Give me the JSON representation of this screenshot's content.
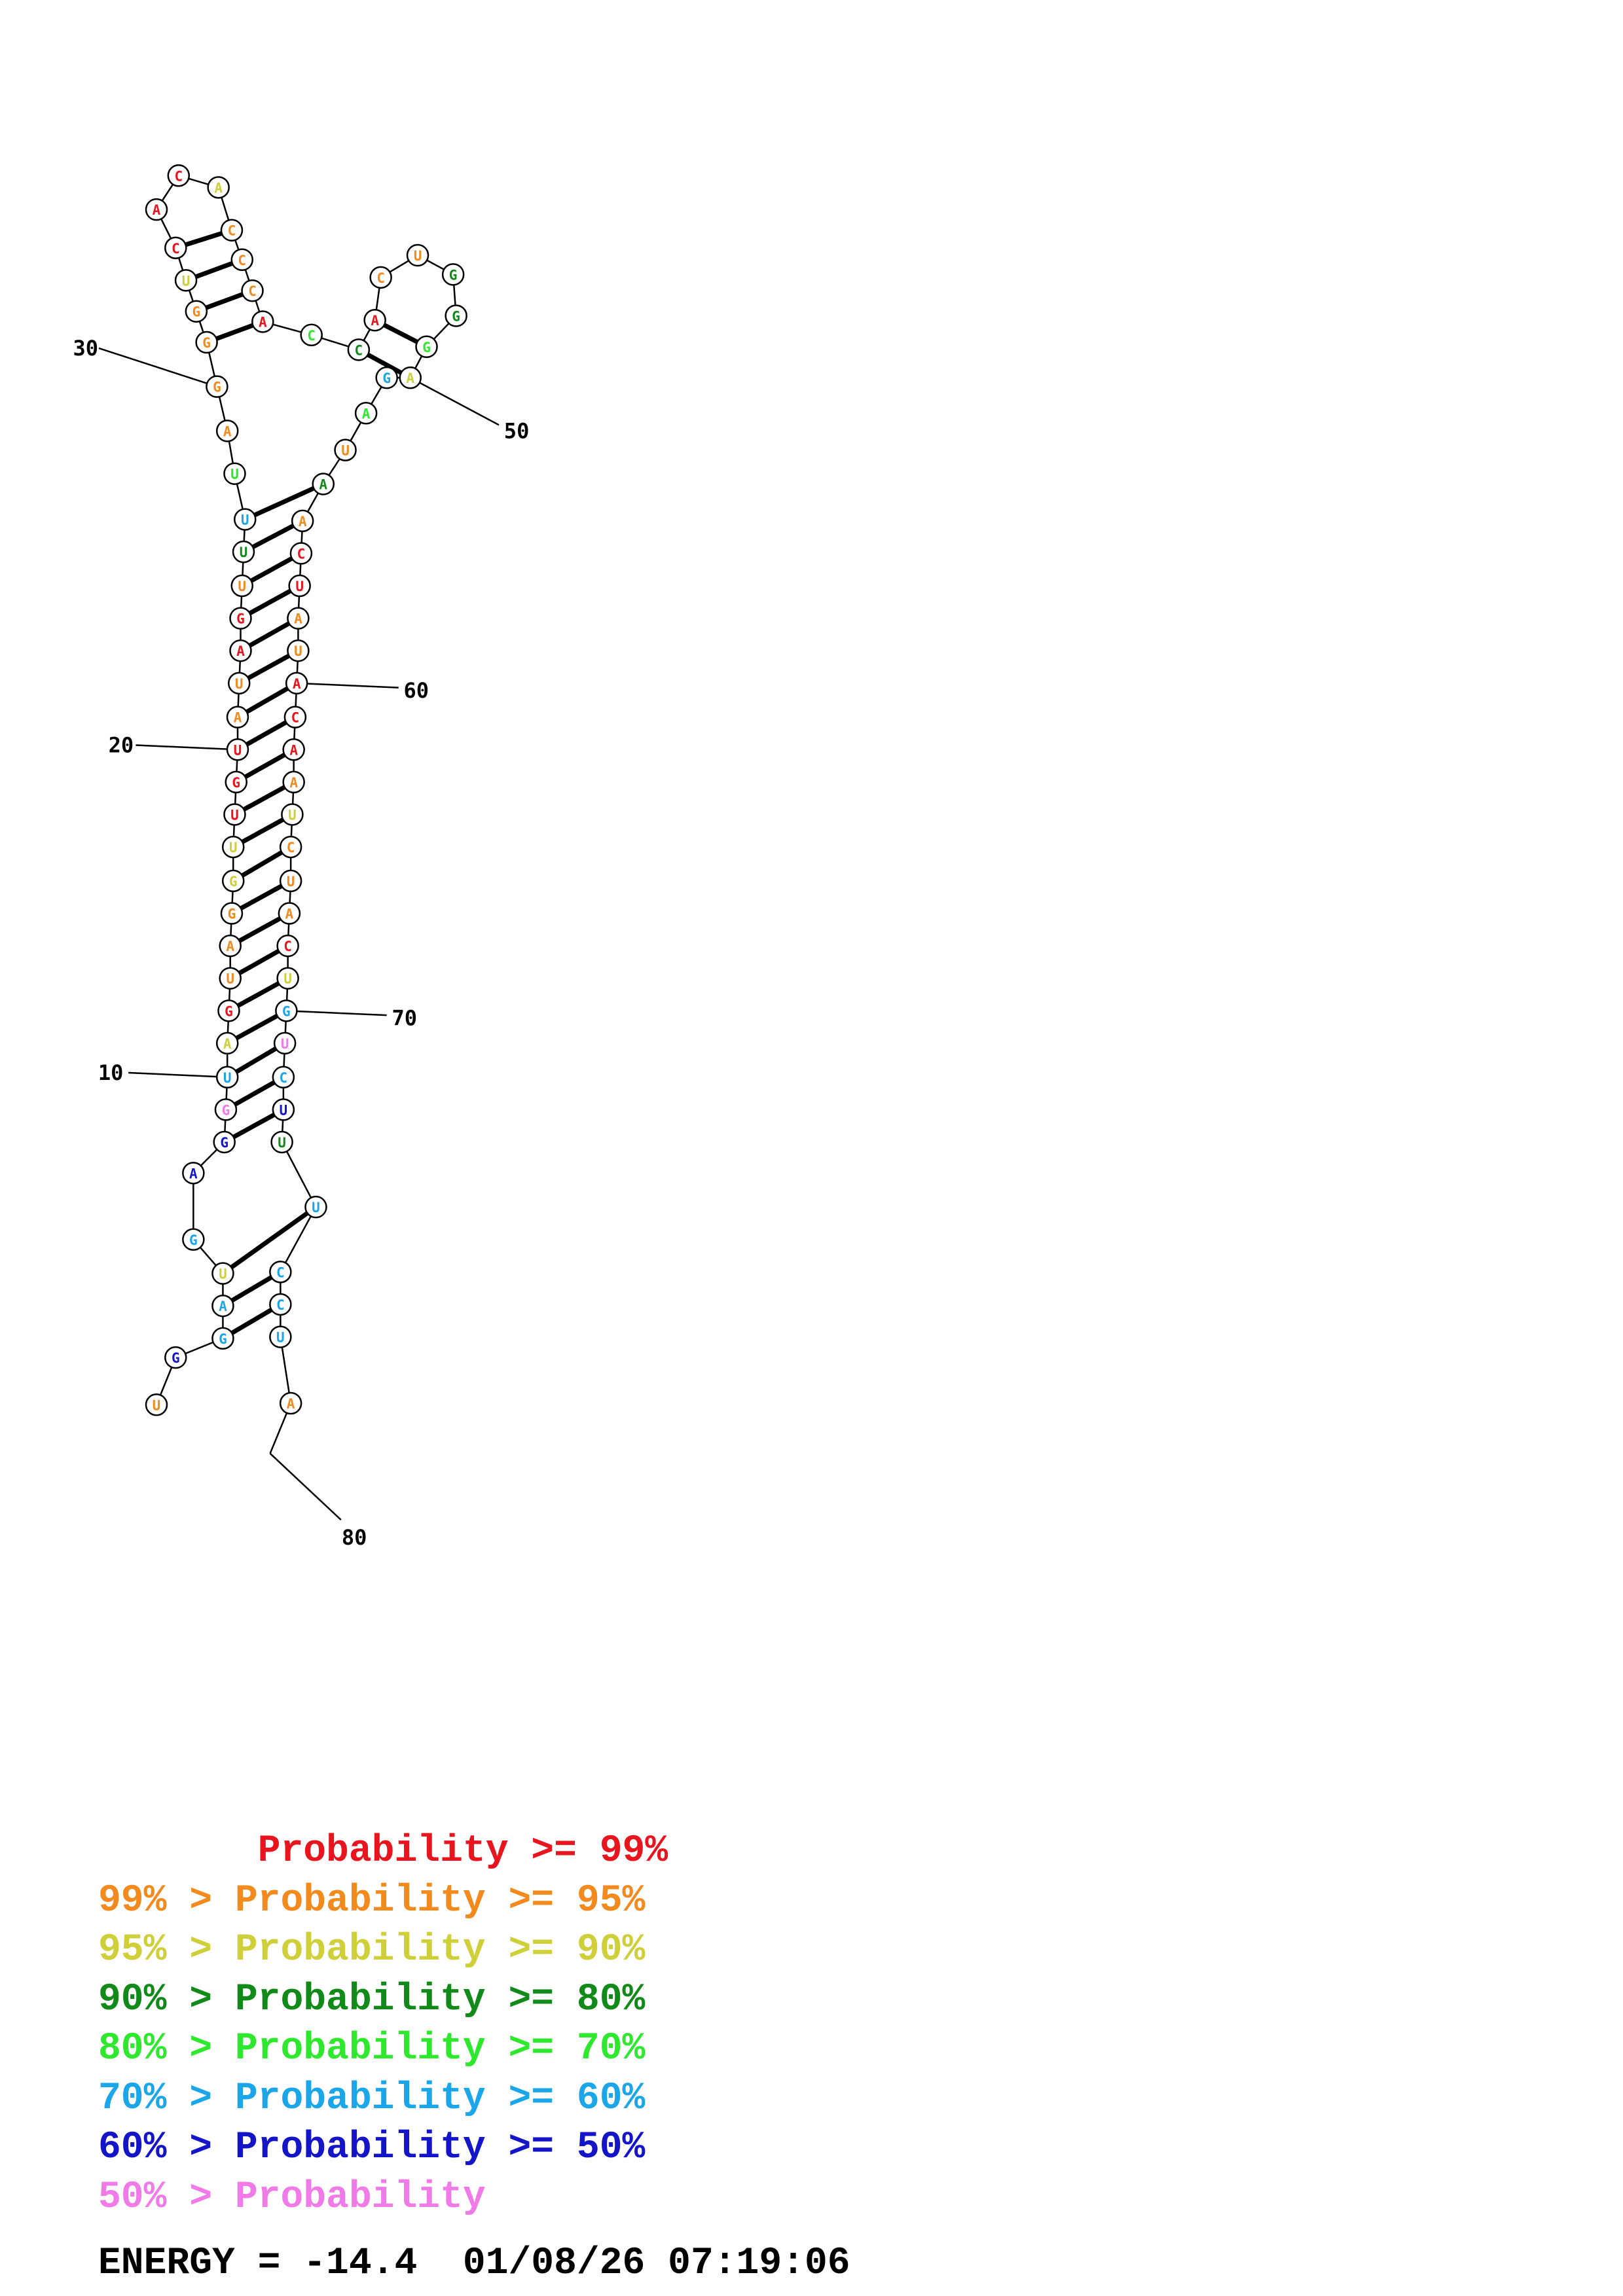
{
  "colors": {
    "red": "#e8141e",
    "orange": "#f28a1e",
    "yellow": "#cfcf3a",
    "darkgreen": "#118a1a",
    "green": "#2ee82e",
    "cyan": "#1aa6e8",
    "blue": "#1414c8",
    "pink": "#f07ae8",
    "black": "#000000"
  },
  "sequence": [
    {
      "n": "U",
      "c": "orange"
    },
    {
      "n": "G",
      "c": "blue"
    },
    {
      "n": "G",
      "c": "cyan"
    },
    {
      "n": "A",
      "c": "cyan"
    },
    {
      "n": "U",
      "c": "yellow"
    },
    {
      "n": "G",
      "c": "cyan"
    },
    {
      "n": "A",
      "c": "blue"
    },
    {
      "n": "G",
      "c": "blue"
    },
    {
      "n": "G",
      "c": "pink"
    },
    {
      "n": "U",
      "c": "cyan"
    },
    {
      "n": "A",
      "c": "yellow"
    },
    {
      "n": "G",
      "c": "red"
    },
    {
      "n": "U",
      "c": "orange"
    },
    {
      "n": "A",
      "c": "orange"
    },
    {
      "n": "G",
      "c": "orange"
    },
    {
      "n": "G",
      "c": "yellow"
    },
    {
      "n": "U",
      "c": "yellow"
    },
    {
      "n": "U",
      "c": "red"
    },
    {
      "n": "G",
      "c": "red"
    },
    {
      "n": "U",
      "c": "red"
    },
    {
      "n": "A",
      "c": "orange"
    },
    {
      "n": "U",
      "c": "orange"
    },
    {
      "n": "A",
      "c": "red"
    },
    {
      "n": "G",
      "c": "red"
    },
    {
      "n": "U",
      "c": "orange"
    },
    {
      "n": "U",
      "c": "darkgreen"
    },
    {
      "n": "U",
      "c": "cyan"
    },
    {
      "n": "U",
      "c": "green"
    },
    {
      "n": "A",
      "c": "orange"
    },
    {
      "n": "G",
      "c": "orange"
    },
    {
      "n": "G",
      "c": "orange"
    },
    {
      "n": "G",
      "c": "orange"
    },
    {
      "n": "U",
      "c": "yellow"
    },
    {
      "n": "C",
      "c": "red"
    },
    {
      "n": "A",
      "c": "red"
    },
    {
      "n": "C",
      "c": "red"
    },
    {
      "n": "A",
      "c": "yellow"
    },
    {
      "n": "C",
      "c": "orange"
    },
    {
      "n": "C",
      "c": "orange"
    },
    {
      "n": "C",
      "c": "orange"
    },
    {
      "n": "A",
      "c": "red"
    },
    {
      "n": "C",
      "c": "green"
    },
    {
      "n": "C",
      "c": "darkgreen"
    },
    {
      "n": "A",
      "c": "red"
    },
    {
      "n": "C",
      "c": "orange"
    },
    {
      "n": "U",
      "c": "orange"
    },
    {
      "n": "G",
      "c": "darkgreen"
    },
    {
      "n": "G",
      "c": "darkgreen"
    },
    {
      "n": "G",
      "c": "green"
    },
    {
      "n": "A",
      "c": "yellow"
    },
    {
      "n": "G",
      "c": "cyan"
    },
    {
      "n": "A",
      "c": "green"
    },
    {
      "n": "U",
      "c": "orange"
    },
    {
      "n": "A",
      "c": "darkgreen"
    },
    {
      "n": "A",
      "c": "orange"
    },
    {
      "n": "C",
      "c": "red"
    },
    {
      "n": "U",
      "c": "red"
    },
    {
      "n": "A",
      "c": "orange"
    },
    {
      "n": "U",
      "c": "orange"
    },
    {
      "n": "A",
      "c": "red"
    },
    {
      "n": "C",
      "c": "red"
    },
    {
      "n": "A",
      "c": "red"
    },
    {
      "n": "A",
      "c": "orange"
    },
    {
      "n": "U",
      "c": "yellow"
    },
    {
      "n": "C",
      "c": "orange"
    },
    {
      "n": "U",
      "c": "orange"
    },
    {
      "n": "A",
      "c": "orange"
    },
    {
      "n": "C",
      "c": "red"
    },
    {
      "n": "U",
      "c": "yellow"
    },
    {
      "n": "G",
      "c": "cyan"
    },
    {
      "n": "U",
      "c": "pink"
    },
    {
      "n": "C",
      "c": "cyan"
    },
    {
      "n": "U",
      "c": "blue"
    },
    {
      "n": "U",
      "c": "darkgreen"
    },
    {
      "n": "U",
      "c": "cyan"
    },
    {
      "n": "C",
      "c": "cyan"
    },
    {
      "n": "C",
      "c": "cyan"
    },
    {
      "n": "U",
      "c": "cyan"
    },
    {
      "n": "A",
      "c": "orange"
    }
  ],
  "pairs": [
    [
      3,
      77
    ],
    [
      4,
      76
    ],
    [
      5,
      75
    ],
    [
      8,
      73
    ],
    [
      9,
      72
    ],
    [
      10,
      71
    ],
    [
      11,
      70
    ],
    [
      12,
      69
    ],
    [
      13,
      68
    ],
    [
      14,
      67
    ],
    [
      15,
      66
    ],
    [
      16,
      65
    ],
    [
      17,
      64
    ],
    [
      18,
      63
    ],
    [
      19,
      62
    ],
    [
      20,
      61
    ],
    [
      21,
      60
    ],
    [
      22,
      59
    ],
    [
      23,
      58
    ],
    [
      24,
      57
    ],
    [
      25,
      56
    ],
    [
      26,
      55
    ],
    [
      27,
      54
    ],
    [
      31,
      41
    ],
    [
      32,
      40
    ],
    [
      33,
      39
    ],
    [
      34,
      38
    ],
    [
      43,
      50
    ],
    [
      44,
      49
    ]
  ],
  "tick_labels": [
    {
      "pos": 10,
      "text": "10"
    },
    {
      "pos": 20,
      "text": "20"
    },
    {
      "pos": 30,
      "text": "30"
    },
    {
      "pos": 50,
      "text": "50"
    },
    {
      "pos": 60,
      "text": "60"
    },
    {
      "pos": 70,
      "text": "70"
    },
    {
      "pos": 80,
      "text": "80"
    }
  ],
  "legend": [
    {
      "text": "       Probability >= 99%",
      "color": "red"
    },
    {
      "text": "99% > Probability >= 95%",
      "color": "orange"
    },
    {
      "text": "95% > Probability >= 90%",
      "color": "yellow"
    },
    {
      "text": "90% > Probability >= 80%",
      "color": "darkgreen"
    },
    {
      "text": "80% > Probability >= 70%",
      "color": "green"
    },
    {
      "text": "70% > Probability >= 60%",
      "color": "cyan"
    },
    {
      "text": "60% > Probability >= 50%",
      "color": "blue"
    },
    {
      "text": "50% > Probability",
      "color": "pink"
    }
  ],
  "energy_line": "ENERGY = -14.4  01/08/26 07:19:06"
}
